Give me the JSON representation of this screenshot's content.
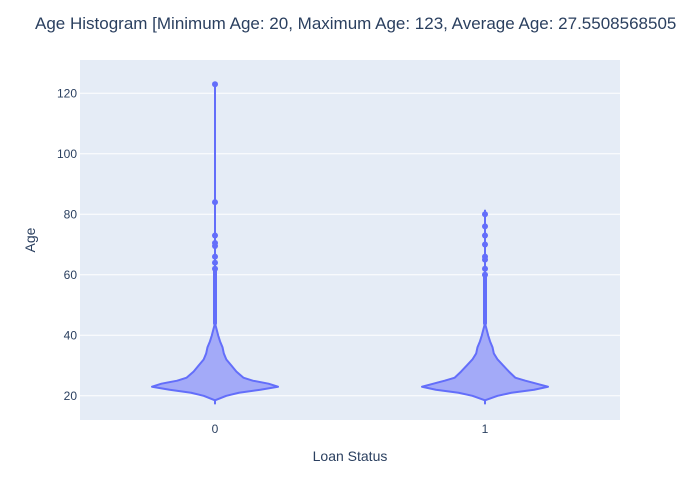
{
  "chart_data": {
    "type": "violin",
    "title": "Age Histogram [Minimum Age: 20, Maximum Age: 123, Average Age: 27.5508568505",
    "xlabel": "Loan Status",
    "ylabel": "Age",
    "categories": [
      "0",
      "1"
    ],
    "ylim": [
      12,
      131
    ],
    "yticks": [
      20,
      40,
      60,
      80,
      100,
      120
    ],
    "grid": true,
    "legend": "none",
    "colors": {
      "plot_bg": "#E5ECF6",
      "grid": "#ffffff",
      "violin_fill": "#A3AAF8",
      "violin_line": "#636EFA",
      "text": "#2a3f5f"
    },
    "series": [
      {
        "category": "0",
        "min": 18.5,
        "max": 123,
        "outliers": [
          123,
          84,
          73,
          70.5,
          69.5,
          66,
          64,
          62
        ],
        "density": [
          [
            18.5,
            0.0
          ],
          [
            20,
            0.18
          ],
          [
            21,
            0.38
          ],
          [
            22,
            0.72
          ],
          [
            23,
            1.0
          ],
          [
            24,
            0.85
          ],
          [
            25,
            0.6
          ],
          [
            26,
            0.45
          ],
          [
            28,
            0.34
          ],
          [
            30,
            0.26
          ],
          [
            32,
            0.18
          ],
          [
            34,
            0.14
          ],
          [
            36,
            0.12
          ],
          [
            38,
            0.08
          ],
          [
            40,
            0.05
          ],
          [
            42,
            0.025
          ],
          [
            44,
            0.0
          ]
        ]
      },
      {
        "category": "1",
        "min": 18.5,
        "max": 81.5,
        "outliers": [
          80,
          76,
          73,
          70,
          66,
          65,
          62,
          60
        ],
        "density": [
          [
            18.5,
            0.0
          ],
          [
            20,
            0.2
          ],
          [
            21,
            0.42
          ],
          [
            22,
            0.78
          ],
          [
            23,
            1.0
          ],
          [
            24,
            0.82
          ],
          [
            25,
            0.64
          ],
          [
            26,
            0.48
          ],
          [
            28,
            0.38
          ],
          [
            30,
            0.29
          ],
          [
            32,
            0.2
          ],
          [
            34,
            0.14
          ],
          [
            36,
            0.12
          ],
          [
            38,
            0.08
          ],
          [
            40,
            0.05
          ],
          [
            42,
            0.025
          ],
          [
            44,
            0.0
          ]
        ]
      }
    ]
  }
}
